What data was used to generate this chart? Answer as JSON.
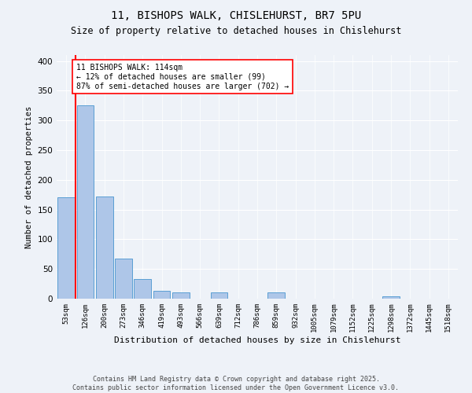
{
  "title1": "11, BISHOPS WALK, CHISLEHURST, BR7 5PU",
  "title2": "Size of property relative to detached houses in Chislehurst",
  "xlabel": "Distribution of detached houses by size in Chislehurst",
  "ylabel": "Number of detached properties",
  "categories": [
    "53sqm",
    "126sqm",
    "200sqm",
    "273sqm",
    "346sqm",
    "419sqm",
    "493sqm",
    "566sqm",
    "639sqm",
    "712sqm",
    "786sqm",
    "859sqm",
    "932sqm",
    "1005sqm",
    "1079sqm",
    "1152sqm",
    "1225sqm",
    "1298sqm",
    "1372sqm",
    "1445sqm",
    "1518sqm"
  ],
  "values": [
    170,
    325,
    172,
    68,
    33,
    13,
    10,
    0,
    10,
    0,
    0,
    10,
    0,
    0,
    0,
    0,
    0,
    4,
    0,
    0,
    0
  ],
  "bar_color": "#aec6e8",
  "bar_edge_color": "#5a9fd4",
  "vline_x": 0.5,
  "vline_color": "red",
  "annotation_text": "11 BISHOPS WALK: 114sqm\n← 12% of detached houses are smaller (99)\n87% of semi-detached houses are larger (702) →",
  "annotation_box_color": "white",
  "annotation_box_edge": "red",
  "ylim": [
    0,
    410
  ],
  "yticks": [
    0,
    50,
    100,
    150,
    200,
    250,
    300,
    350,
    400
  ],
  "footer1": "Contains HM Land Registry data © Crown copyright and database right 2025.",
  "footer2": "Contains public sector information licensed under the Open Government Licence v3.0.",
  "bg_color": "#eef2f8",
  "grid_color": "white"
}
